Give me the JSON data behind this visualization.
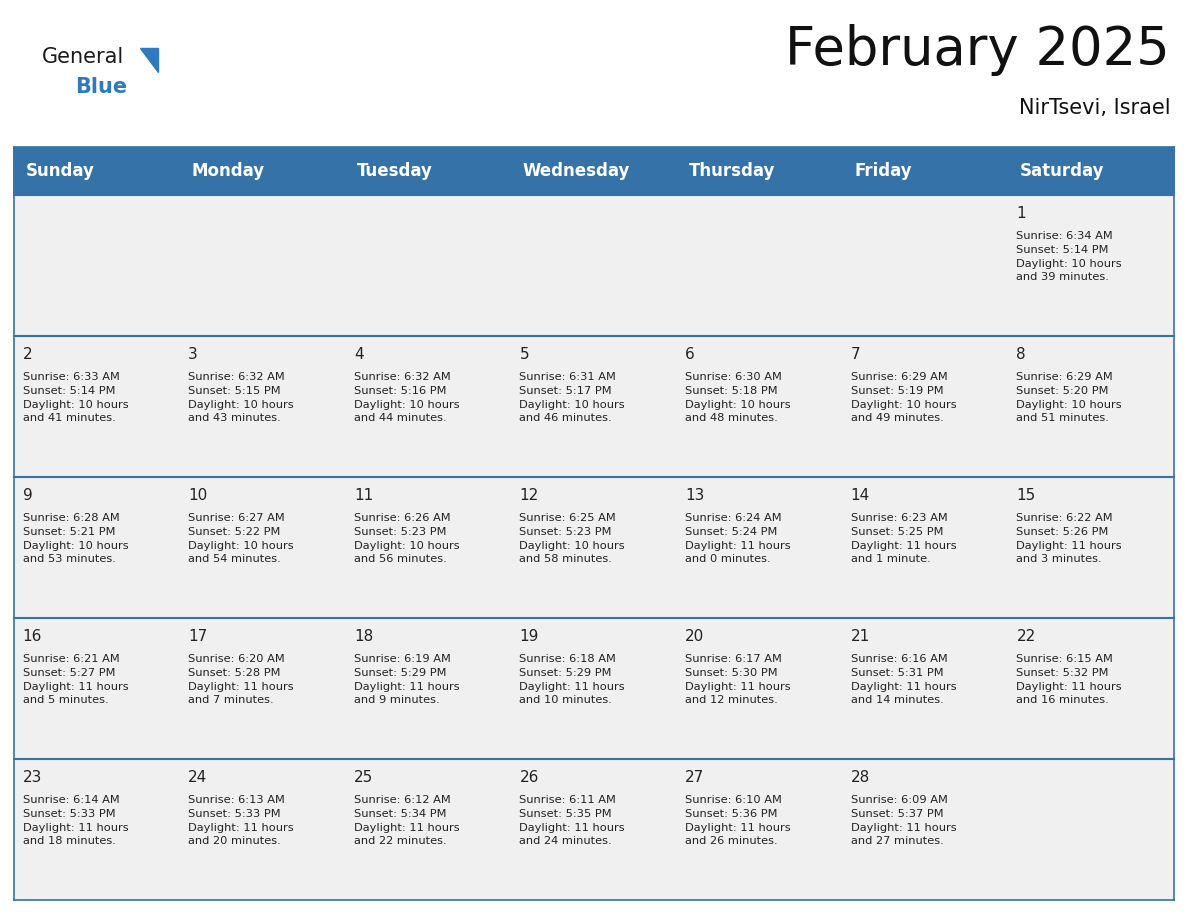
{
  "title": "February 2025",
  "subtitle": "NirTsevi, Israel",
  "header_color": "#3472a8",
  "header_text_color": "#ffffff",
  "cell_bg": "#f0f0f0",
  "cell_bg_white": "#ffffff",
  "border_color": "#3472a8",
  "text_color": "#222222",
  "days_of_week": [
    "Sunday",
    "Monday",
    "Tuesday",
    "Wednesday",
    "Thursday",
    "Friday",
    "Saturday"
  ],
  "title_fontsize": 38,
  "subtitle_fontsize": 15,
  "day_num_fontsize": 11,
  "cell_text_fontsize": 8.2,
  "header_fontsize": 12,
  "logo_color_general": "#1a1a1a",
  "logo_color_blue": "#2e7abf",
  "logo_triangle_color": "#2e7abf",
  "weeks": [
    [
      {
        "day": null,
        "text": ""
      },
      {
        "day": null,
        "text": ""
      },
      {
        "day": null,
        "text": ""
      },
      {
        "day": null,
        "text": ""
      },
      {
        "day": null,
        "text": ""
      },
      {
        "day": null,
        "text": ""
      },
      {
        "day": 1,
        "text": "Sunrise: 6:34 AM\nSunset: 5:14 PM\nDaylight: 10 hours\nand 39 minutes."
      }
    ],
    [
      {
        "day": 2,
        "text": "Sunrise: 6:33 AM\nSunset: 5:14 PM\nDaylight: 10 hours\nand 41 minutes."
      },
      {
        "day": 3,
        "text": "Sunrise: 6:32 AM\nSunset: 5:15 PM\nDaylight: 10 hours\nand 43 minutes."
      },
      {
        "day": 4,
        "text": "Sunrise: 6:32 AM\nSunset: 5:16 PM\nDaylight: 10 hours\nand 44 minutes."
      },
      {
        "day": 5,
        "text": "Sunrise: 6:31 AM\nSunset: 5:17 PM\nDaylight: 10 hours\nand 46 minutes."
      },
      {
        "day": 6,
        "text": "Sunrise: 6:30 AM\nSunset: 5:18 PM\nDaylight: 10 hours\nand 48 minutes."
      },
      {
        "day": 7,
        "text": "Sunrise: 6:29 AM\nSunset: 5:19 PM\nDaylight: 10 hours\nand 49 minutes."
      },
      {
        "day": 8,
        "text": "Sunrise: 6:29 AM\nSunset: 5:20 PM\nDaylight: 10 hours\nand 51 minutes."
      }
    ],
    [
      {
        "day": 9,
        "text": "Sunrise: 6:28 AM\nSunset: 5:21 PM\nDaylight: 10 hours\nand 53 minutes."
      },
      {
        "day": 10,
        "text": "Sunrise: 6:27 AM\nSunset: 5:22 PM\nDaylight: 10 hours\nand 54 minutes."
      },
      {
        "day": 11,
        "text": "Sunrise: 6:26 AM\nSunset: 5:23 PM\nDaylight: 10 hours\nand 56 minutes."
      },
      {
        "day": 12,
        "text": "Sunrise: 6:25 AM\nSunset: 5:23 PM\nDaylight: 10 hours\nand 58 minutes."
      },
      {
        "day": 13,
        "text": "Sunrise: 6:24 AM\nSunset: 5:24 PM\nDaylight: 11 hours\nand 0 minutes."
      },
      {
        "day": 14,
        "text": "Sunrise: 6:23 AM\nSunset: 5:25 PM\nDaylight: 11 hours\nand 1 minute."
      },
      {
        "day": 15,
        "text": "Sunrise: 6:22 AM\nSunset: 5:26 PM\nDaylight: 11 hours\nand 3 minutes."
      }
    ],
    [
      {
        "day": 16,
        "text": "Sunrise: 6:21 AM\nSunset: 5:27 PM\nDaylight: 11 hours\nand 5 minutes."
      },
      {
        "day": 17,
        "text": "Sunrise: 6:20 AM\nSunset: 5:28 PM\nDaylight: 11 hours\nand 7 minutes."
      },
      {
        "day": 18,
        "text": "Sunrise: 6:19 AM\nSunset: 5:29 PM\nDaylight: 11 hours\nand 9 minutes."
      },
      {
        "day": 19,
        "text": "Sunrise: 6:18 AM\nSunset: 5:29 PM\nDaylight: 11 hours\nand 10 minutes."
      },
      {
        "day": 20,
        "text": "Sunrise: 6:17 AM\nSunset: 5:30 PM\nDaylight: 11 hours\nand 12 minutes."
      },
      {
        "day": 21,
        "text": "Sunrise: 6:16 AM\nSunset: 5:31 PM\nDaylight: 11 hours\nand 14 minutes."
      },
      {
        "day": 22,
        "text": "Sunrise: 6:15 AM\nSunset: 5:32 PM\nDaylight: 11 hours\nand 16 minutes."
      }
    ],
    [
      {
        "day": 23,
        "text": "Sunrise: 6:14 AM\nSunset: 5:33 PM\nDaylight: 11 hours\nand 18 minutes."
      },
      {
        "day": 24,
        "text": "Sunrise: 6:13 AM\nSunset: 5:33 PM\nDaylight: 11 hours\nand 20 minutes."
      },
      {
        "day": 25,
        "text": "Sunrise: 6:12 AM\nSunset: 5:34 PM\nDaylight: 11 hours\nand 22 minutes."
      },
      {
        "day": 26,
        "text": "Sunrise: 6:11 AM\nSunset: 5:35 PM\nDaylight: 11 hours\nand 24 minutes."
      },
      {
        "day": 27,
        "text": "Sunrise: 6:10 AM\nSunset: 5:36 PM\nDaylight: 11 hours\nand 26 minutes."
      },
      {
        "day": 28,
        "text": "Sunrise: 6:09 AM\nSunset: 5:37 PM\nDaylight: 11 hours\nand 27 minutes."
      },
      {
        "day": null,
        "text": ""
      }
    ]
  ]
}
